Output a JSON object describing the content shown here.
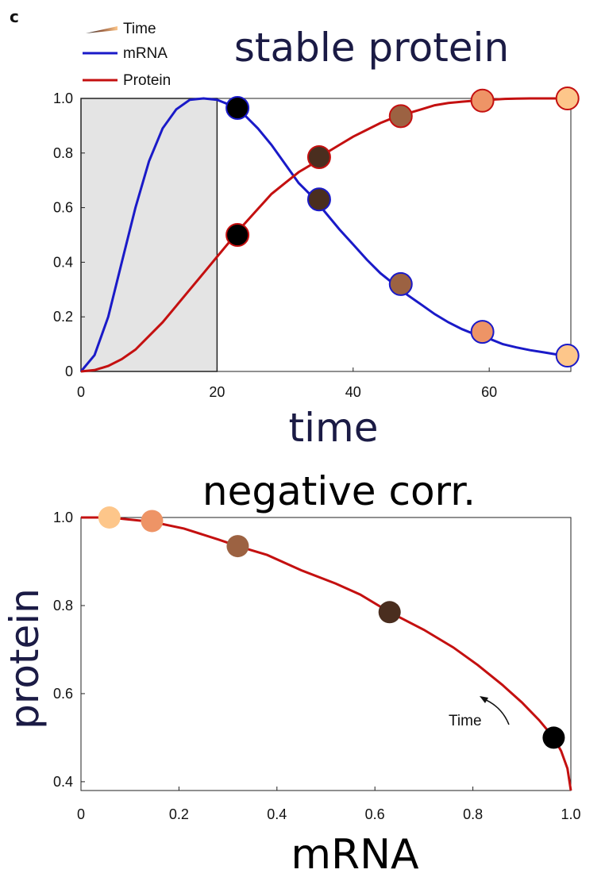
{
  "panel_label": "c",
  "chart_data": [
    {
      "type": "line",
      "title": "stable protein",
      "xlabel": "time",
      "ylabel": "",
      "xlim": [
        0,
        72
      ],
      "ylim": [
        0,
        1
      ],
      "xticks": [
        "0",
        "20",
        "40",
        "60"
      ],
      "yticks": [
        "0",
        "0.2",
        "0.4",
        "0.6",
        "0.8",
        "1.0"
      ],
      "legend": {
        "placement": "top-left",
        "entries": [
          "Time",
          "mRNA",
          "Protein"
        ]
      },
      "shaded_region": {
        "x": [
          0,
          20
        ],
        "color": "#e4e4e4"
      },
      "series": [
        {
          "name": "mRNA",
          "color": "#1a1ac8",
          "x": [
            0,
            2,
            4,
            6,
            8,
            10,
            12,
            14,
            16,
            18,
            20,
            22,
            24,
            26,
            28,
            30,
            32,
            34,
            36,
            38,
            40,
            42,
            44,
            46,
            48,
            50,
            52,
            54,
            56,
            58,
            60,
            62,
            64,
            66,
            68,
            70,
            71.5
          ],
          "values": [
            0,
            0.06,
            0.2,
            0.4,
            0.6,
            0.77,
            0.89,
            0.96,
            0.995,
            1.0,
            0.995,
            0.975,
            0.94,
            0.89,
            0.83,
            0.76,
            0.69,
            0.64,
            0.58,
            0.52,
            0.465,
            0.41,
            0.36,
            0.32,
            0.28,
            0.245,
            0.21,
            0.18,
            0.155,
            0.135,
            0.12,
            0.1,
            0.088,
            0.078,
            0.07,
            0.062,
            0.058
          ]
        },
        {
          "name": "Protein",
          "color": "#c41010",
          "x": [
            0,
            2,
            4,
            6,
            8,
            10,
            12,
            14,
            16,
            18,
            20,
            22,
            24,
            26,
            28,
            30,
            32,
            34,
            36,
            38,
            40,
            42,
            44,
            46,
            48,
            50,
            52,
            54,
            56,
            58,
            60,
            62,
            64,
            66,
            68,
            70,
            71.5
          ],
          "values": [
            0,
            0.005,
            0.02,
            0.045,
            0.08,
            0.13,
            0.18,
            0.24,
            0.3,
            0.36,
            0.42,
            0.48,
            0.54,
            0.595,
            0.65,
            0.69,
            0.73,
            0.76,
            0.8,
            0.83,
            0.86,
            0.885,
            0.91,
            0.93,
            0.945,
            0.96,
            0.975,
            0.983,
            0.988,
            0.992,
            0.995,
            0.998,
            0.999,
            1.0,
            1.0,
            1.0,
            1.0
          ]
        }
      ],
      "markers": {
        "x": [
          23,
          35,
          47,
          59,
          71.5
        ],
        "colors": [
          "#000000",
          "#4a2e1f",
          "#9c6242",
          "#ee9466",
          "#fdc68a"
        ],
        "mRNA": [
          0.965,
          0.63,
          0.32,
          0.145,
          0.058
        ],
        "Protein": [
          0.5,
          0.785,
          0.935,
          0.992,
          1.0
        ]
      }
    },
    {
      "type": "line",
      "title": "negative corr.",
      "xlabel": "mRNA",
      "ylabel": "protein",
      "xlim": [
        0,
        1.0
      ],
      "ylim": [
        0.38,
        1.0
      ],
      "xticks": [
        "0",
        "0.2",
        "0.4",
        "0.6",
        "0.8",
        "1.0"
      ],
      "yticks": [
        "0.4",
        "0.6",
        "0.8",
        "1.0"
      ],
      "annotation": "Time",
      "series": [
        {
          "name": "",
          "color": "#c41010",
          "x": [
            0.0,
            0.058,
            0.145,
            0.21,
            0.28,
            0.32,
            0.38,
            0.45,
            0.52,
            0.57,
            0.63,
            0.7,
            0.76,
            0.81,
            0.86,
            0.9,
            0.935,
            0.965,
            0.98,
            0.993,
            1.0
          ],
          "values": [
            1.0,
            1.0,
            0.99,
            0.975,
            0.95,
            0.935,
            0.915,
            0.88,
            0.85,
            0.825,
            0.785,
            0.745,
            0.705,
            0.665,
            0.62,
            0.58,
            0.54,
            0.5,
            0.47,
            0.43,
            0.38
          ]
        }
      ],
      "markers": {
        "x": [
          0.058,
          0.145,
          0.32,
          0.63,
          0.965
        ],
        "y": [
          1.0,
          0.992,
          0.935,
          0.785,
          0.5
        ],
        "colors": [
          "#fdc68a",
          "#ee9466",
          "#9c6242",
          "#4a2e1f",
          "#000000"
        ]
      }
    }
  ]
}
